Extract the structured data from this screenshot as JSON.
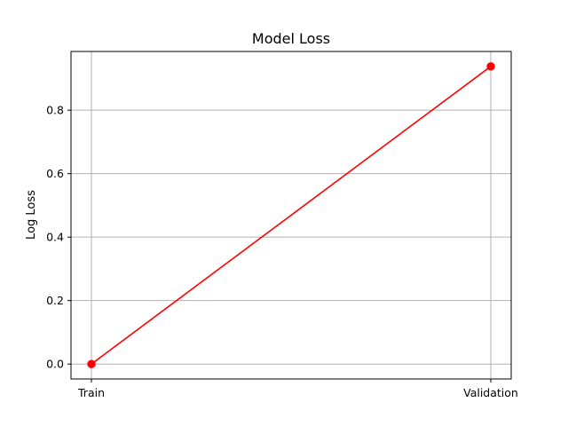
{
  "chart_data": {
    "type": "line",
    "title": "Model Loss",
    "xlabel": "",
    "ylabel": "Log Loss",
    "categories": [
      "Train",
      "Validation"
    ],
    "series": [
      {
        "values": [
          0.0,
          0.938
        ],
        "color": "#ff0000",
        "marker": "circle"
      }
    ],
    "ylim": [
      -0.047,
      0.985
    ],
    "yticks": [
      0.0,
      0.2,
      0.4,
      0.6,
      0.8
    ],
    "ytick_labels": [
      "0.0",
      "0.2",
      "0.4",
      "0.6",
      "0.8"
    ],
    "grid": true,
    "grid_color": "#b0b0b0",
    "legend": "none"
  }
}
